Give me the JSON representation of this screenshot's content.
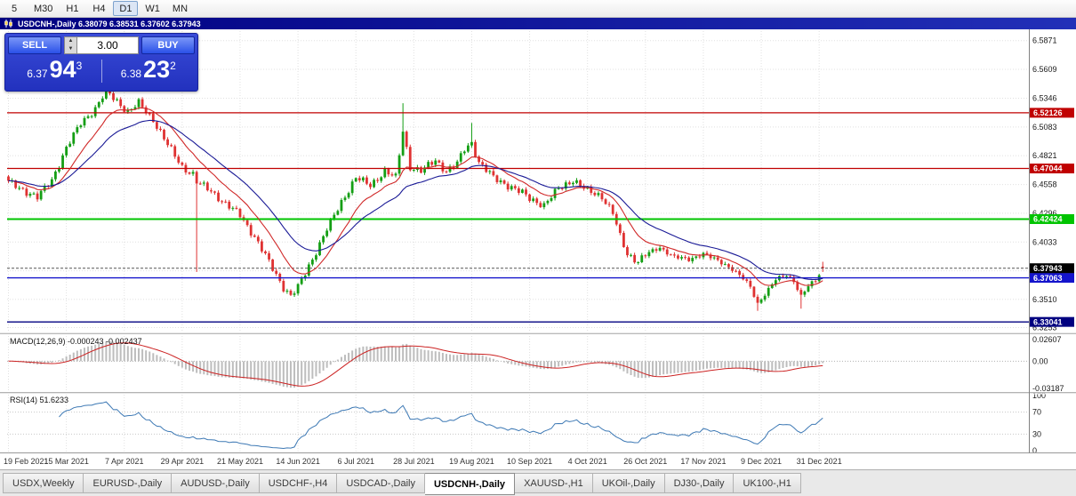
{
  "timeframe_toolbar": {
    "buttons": [
      "5",
      "M30",
      "H1",
      "H4",
      "D1",
      "W1",
      "MN"
    ],
    "active": "D1"
  },
  "chart_window": {
    "title": "USDCNH-,Daily 6.38079 6.38531 6.37602 6.37943"
  },
  "trade_panel": {
    "sell_label": "SELL",
    "buy_label": "BUY",
    "volume": "3.00",
    "bid": {
      "prefix": "6.37",
      "big": "94",
      "sup": "3"
    },
    "ask": {
      "prefix": "6.38",
      "big": "23",
      "sup": "2"
    }
  },
  "chart_data": {
    "type": "candlestick",
    "symbol": "USDCNH-",
    "period": "Daily",
    "last_ohlc": {
      "open": 6.38079,
      "high": 6.38531,
      "low": 6.37602,
      "close": 6.37943
    },
    "y_axis_labels": [
      "6.5871",
      "6.5609",
      "6.5346",
      "6.5083",
      "6.4821",
      "6.4558",
      "6.4296",
      "6.4033",
      "6.3771",
      "6.3510",
      "6.3253"
    ],
    "price_min": 6.3208,
    "price_max": 6.5958,
    "candle_count": 226,
    "x_axis_labels": [
      {
        "index": 0,
        "label": "19 Feb 2021"
      },
      {
        "index": 16,
        "label": "15 Mar 2021"
      },
      {
        "index": 32,
        "label": "7 Apr 2021"
      },
      {
        "index": 48,
        "label": "29 Apr 2021"
      },
      {
        "index": 64,
        "label": "21 May 2021"
      },
      {
        "index": 80,
        "label": "14 Jun 2021"
      },
      {
        "index": 96,
        "label": "6 Jul 2021"
      },
      {
        "index": 112,
        "label": "28 Jul 2021"
      },
      {
        "index": 128,
        "label": "19 Aug 2021"
      },
      {
        "index": 144,
        "label": "10 Sep 2021"
      },
      {
        "index": 160,
        "label": "4 Oct 2021"
      },
      {
        "index": 176,
        "label": "26 Oct 2021"
      },
      {
        "index": 192,
        "label": "17 Nov 2021"
      },
      {
        "index": 208,
        "label": "9 Dec 2021"
      },
      {
        "index": 224,
        "label": "31 Dec 2021"
      }
    ],
    "close_anchors": [
      [
        0,
        6.458
      ],
      [
        4,
        6.451
      ],
      [
        8,
        6.444
      ],
      [
        12,
        6.46
      ],
      [
        16,
        6.489
      ],
      [
        20,
        6.512
      ],
      [
        24,
        6.525
      ],
      [
        27,
        6.541
      ],
      [
        30,
        6.532
      ],
      [
        33,
        6.522
      ],
      [
        36,
        6.53
      ],
      [
        40,
        6.515
      ],
      [
        44,
        6.492
      ],
      [
        48,
        6.472
      ],
      [
        51,
        6.465
      ],
      [
        52,
        6.458
      ],
      [
        56,
        6.45
      ],
      [
        60,
        6.438
      ],
      [
        64,
        6.428
      ],
      [
        68,
        6.408
      ],
      [
        72,
        6.385
      ],
      [
        76,
        6.362
      ],
      [
        78,
        6.354
      ],
      [
        80,
        6.362
      ],
      [
        84,
        6.388
      ],
      [
        88,
        6.415
      ],
      [
        92,
        6.44
      ],
      [
        96,
        6.462
      ],
      [
        100,
        6.455
      ],
      [
        104,
        6.468
      ],
      [
        107,
        6.462
      ],
      [
        109,
        6.505
      ],
      [
        111,
        6.472
      ],
      [
        114,
        6.468
      ],
      [
        118,
        6.478
      ],
      [
        121,
        6.468
      ],
      [
        124,
        6.475
      ],
      [
        126,
        6.488
      ],
      [
        128,
        6.494
      ],
      [
        130,
        6.476
      ],
      [
        134,
        6.462
      ],
      [
        138,
        6.455
      ],
      [
        142,
        6.448
      ],
      [
        144,
        6.443
      ],
      [
        148,
        6.437
      ],
      [
        152,
        6.452
      ],
      [
        156,
        6.46
      ],
      [
        160,
        6.45
      ],
      [
        164,
        6.445
      ],
      [
        167,
        6.43
      ],
      [
        169,
        6.408
      ],
      [
        171,
        6.392
      ],
      [
        174,
        6.386
      ],
      [
        176,
        6.392
      ],
      [
        180,
        6.398
      ],
      [
        184,
        6.39
      ],
      [
        188,
        6.387
      ],
      [
        192,
        6.393
      ],
      [
        196,
        6.386
      ],
      [
        200,
        6.379
      ],
      [
        203,
        6.37
      ],
      [
        205,
        6.362
      ],
      [
        207,
        6.347
      ],
      [
        209,
        6.356
      ],
      [
        212,
        6.369
      ],
      [
        215,
        6.373
      ],
      [
        217,
        6.368
      ],
      [
        219,
        6.354
      ],
      [
        221,
        6.363
      ],
      [
        223,
        6.368
      ],
      [
        225,
        6.3794
      ]
    ],
    "wick_overrides": [
      [
        27,
        "high",
        6.548
      ],
      [
        52,
        "low",
        6.376
      ],
      [
        109,
        "high",
        6.53
      ],
      [
        128,
        "high",
        6.512
      ],
      [
        207,
        "low",
        6.3405
      ],
      [
        219,
        "low",
        6.3425
      ]
    ],
    "noise": {
      "amp1": 0.0026,
      "freq1": 2.13,
      "amp2": 0.0012,
      "freq2": 0.71,
      "wick": 0.0016
    },
    "horizontal_lines": [
      {
        "price": 6.52126,
        "label": "6.52126",
        "color": "#c00000",
        "width": 1.2
      },
      {
        "price": 6.47044,
        "label": "6.47044",
        "color": "#c00000",
        "width": 1.2
      },
      {
        "price": 6.42424,
        "label": "6.42424",
        "color": "#00c400",
        "width": 2
      },
      {
        "price": 6.37063,
        "label": "6.37063",
        "color": "#1414cc",
        "width": 1.4
      },
      {
        "price": 6.33041,
        "label": "6.33041",
        "color": "#000080",
        "width": 1.4
      }
    ],
    "bid_price_line": {
      "price": 6.37943,
      "label": "6.37943",
      "color": "#000000"
    },
    "moving_averages": [
      {
        "period": 12,
        "color": "#d02828"
      },
      {
        "period": 26,
        "color": "#1a1a96"
      }
    ],
    "colors": {
      "up": "#149e14",
      "down": "#df3232",
      "grid": "#e0e0e0",
      "axis_text": "#1a1a1a"
    }
  },
  "macd_panel": {
    "header": "MACD(12,26,9) -0.000243 -0.002437",
    "params": {
      "fast": 12,
      "slow": 26,
      "signal": 9
    },
    "axis_labels": [
      {
        "value": 0.02607,
        "label": "0.02607"
      },
      {
        "value": 0,
        "label": "0.00"
      },
      {
        "value": -0.03187,
        "label": "-0.03187"
      }
    ],
    "range": [
      -0.03187,
      0.02607
    ],
    "histogram_color": "#bdbdbd",
    "signal_color": "#cc2222"
  },
  "rsi_panel": {
    "header": "RSI(14) 51.6233",
    "period": 14,
    "value": 51.6233,
    "axis_labels": [
      {
        "value": 100,
        "label": "100"
      },
      {
        "value": 70,
        "label": "70"
      },
      {
        "value": 30,
        "label": "30"
      },
      {
        "value": 0,
        "label": "0"
      }
    ],
    "levels": [
      70,
      30
    ],
    "line_color": "#3c78b4"
  },
  "tab_bar": {
    "tabs": [
      "USDX,Weekly",
      "EURUSD-,Daily",
      "AUDUSD-,Daily",
      "USDCHF-,H4",
      "USDCAD-,Daily",
      "USDCNH-,Daily",
      "XAUUSD-,H1",
      "UKOil-,Daily",
      "DJ30-,Daily",
      "UK100-,H1"
    ],
    "active_index": 5
  }
}
